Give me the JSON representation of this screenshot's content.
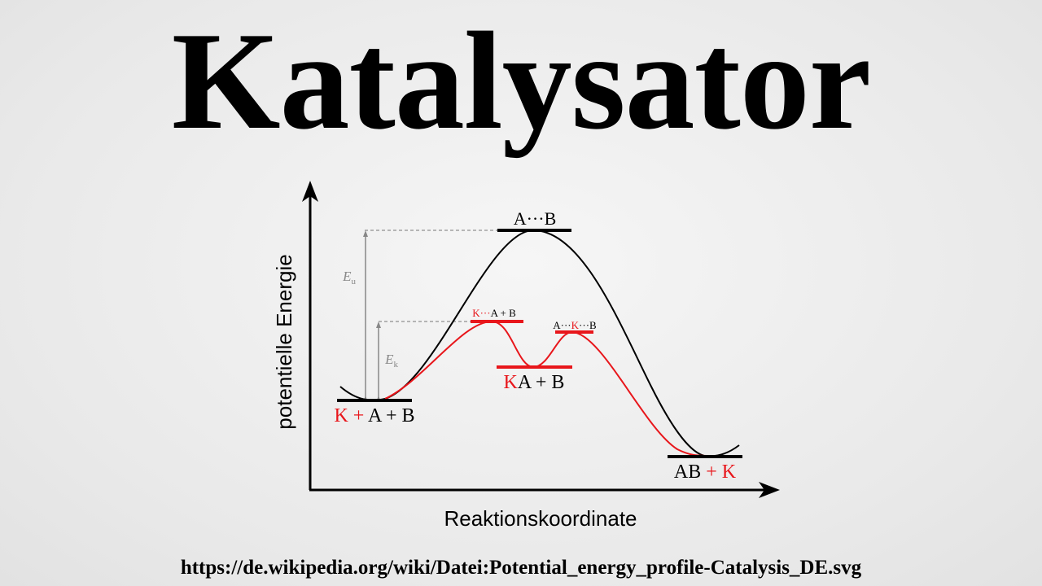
{
  "title": "Katalysator",
  "source_url": "https://de.wikipedia.org/wiki/Datei:Potential_energy_profile-Catalysis_DE.svg",
  "diagram": {
    "y_axis_label": "potentielle Energie",
    "x_axis_label": "Reaktionskoordinate",
    "energy_uncatalyzed_label": "E",
    "energy_uncatalyzed_subscript": "u",
    "energy_catalyzed_label": "E",
    "energy_catalyzed_subscript": "k",
    "states": {
      "reactants": {
        "catalyst": "K + ",
        "rest": "A + B"
      },
      "transition_uncatalyzed": "A···B",
      "transition_cat_1": {
        "red": "K···",
        "black": "A + B"
      },
      "intermediate": {
        "red": "K",
        "black": "A + B"
      },
      "transition_cat_2": {
        "black1": "A···",
        "red": "K",
        "black2": "···B"
      },
      "products": {
        "black": "AB",
        "red": " + K"
      }
    },
    "colors": {
      "uncatalyzed": "#000000",
      "catalyzed": "#e8161b",
      "guide": "#888888"
    }
  }
}
